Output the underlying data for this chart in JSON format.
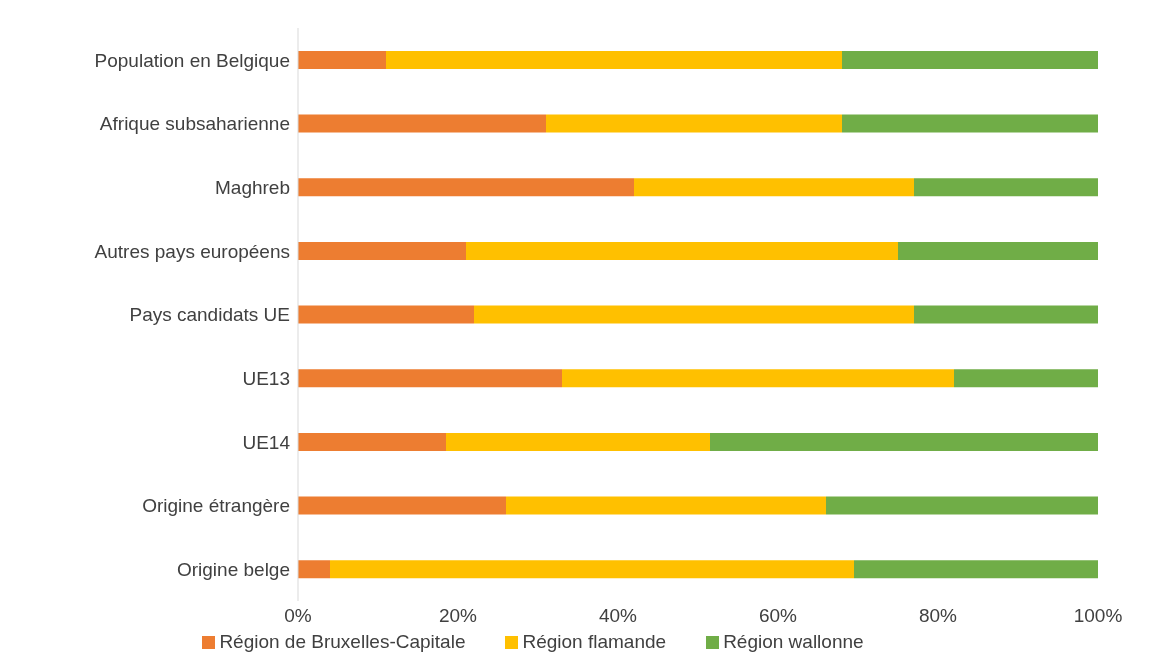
{
  "chart_data": {
    "type": "bar",
    "orientation": "horizontal",
    "stacked": true,
    "categories": [
      "Population en Belgique",
      "Afrique subsaharienne",
      "Maghreb",
      "Autres pays européens",
      "Pays candidats UE",
      "UE13",
      "UE14",
      "Origine étrangère",
      "Origine belge"
    ],
    "series": [
      {
        "name": "Région de Bruxelles-Capitale",
        "color": "#ed7d31",
        "values": [
          11,
          31,
          42,
          21,
          22,
          33,
          18.5,
          26,
          4
        ]
      },
      {
        "name": "Région flamande",
        "color": "#ffc000",
        "values": [
          57,
          37,
          35,
          54,
          55,
          49,
          33,
          40,
          65.5
        ]
      },
      {
        "name": "Région wallonne",
        "color": "#70ad47",
        "values": [
          32,
          32,
          23,
          25,
          23,
          18,
          48.5,
          34,
          30.5
        ]
      }
    ],
    "xlim": [
      0,
      100
    ],
    "xticks": [
      {
        "value": 0,
        "label": "0%"
      },
      {
        "value": 20,
        "label": "20%"
      },
      {
        "value": 40,
        "label": "40%"
      },
      {
        "value": 60,
        "label": "60%"
      },
      {
        "value": 80,
        "label": "80%"
      },
      {
        "value": 100,
        "label": "100%"
      }
    ],
    "grid": false,
    "legend": "bottom"
  }
}
